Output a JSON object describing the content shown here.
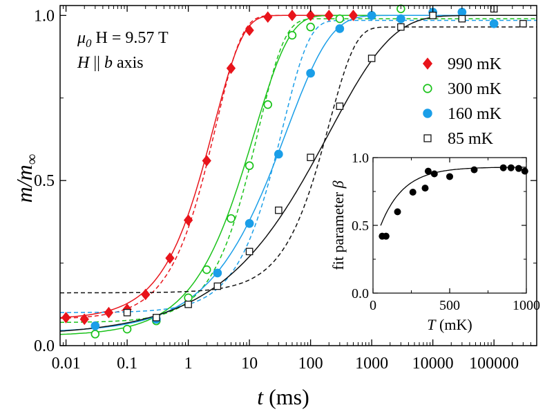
{
  "chart_data": [
    {
      "type": "scatter",
      "x_scale": "log",
      "xlabel_var": "t",
      "xlabel_unit": "(ms)",
      "ylabel_main": "m/m",
      "ylabel_sub": "∞",
      "xlim": [
        0.008,
        500000
      ],
      "ylim": [
        0.0,
        1.03
      ],
      "x_ticks": [
        0.01,
        0.1,
        1,
        10,
        100,
        1000,
        10000,
        100000
      ],
      "x_tick_labels": [
        "0.01",
        "0.1",
        "1",
        "10",
        "100",
        "1000",
        "10000",
        "100000"
      ],
      "y_ticks": [
        0.0,
        0.5,
        1.0
      ],
      "y_tick_labels": [
        "0.0",
        "0.5",
        "1.0"
      ],
      "annotations": {
        "field": {
          "mu": "μ",
          "sub": "0",
          "rest": "H = 9.57 T"
        },
        "direction": {
          "h": "H",
          "rest": " || ",
          "b": "b",
          "tail": " axis"
        }
      },
      "legend_position": "top-right",
      "series": [
        {
          "name": "990 mK",
          "marker": "diamond-filled",
          "color": "#e8141b",
          "x": [
            0.01,
            0.02,
            0.05,
            0.1,
            0.2,
            0.5,
            1,
            2,
            5,
            10,
            20,
            50,
            100,
            200,
            500
          ],
          "y": [
            0.085,
            0.08,
            0.1,
            0.11,
            0.155,
            0.265,
            0.38,
            0.56,
            0.84,
            0.955,
            0.995,
            1.0,
            1.0,
            1.0,
            1.0
          ],
          "fit_solid": {
            "y0": 0.08,
            "y1": 1.0,
            "tau": 2.6,
            "beta": 0.9
          },
          "fit_dashed": {
            "y0": 0.08,
            "y1": 1.0,
            "tau": 2.8,
            "beta": 1.0
          }
        },
        {
          "name": "300 mK",
          "marker": "circle-open",
          "color": "#19c219",
          "x": [
            0.03,
            0.1,
            0.3,
            1,
            2,
            5,
            10,
            20,
            50,
            100,
            300,
            1000,
            3000
          ],
          "y": [
            0.035,
            0.05,
            0.075,
            0.145,
            0.23,
            0.385,
            0.545,
            0.73,
            0.94,
            0.965,
            0.99,
            1.0,
            1.02
          ],
          "fit_solid": {
            "y0": 0.03,
            "y1": 1.0,
            "tau": 12,
            "beta": 0.75
          },
          "fit_dashed": {
            "y0": 0.07,
            "y1": 0.99,
            "tau": 14,
            "beta": 1.0
          }
        },
        {
          "name": "160 mK",
          "marker": "circle-filled",
          "color": "#1a9ee8",
          "x": [
            0.03,
            0.3,
            3,
            10,
            30,
            100,
            300,
            1000,
            3000,
            10000,
            30000,
            100000
          ],
          "y": [
            0.06,
            0.08,
            0.22,
            0.37,
            0.58,
            0.825,
            0.96,
            1.0,
            0.99,
            1.01,
            1.01,
            0.975
          ],
          "fit_solid": {
            "y0": 0.04,
            "y1": 1.0,
            "tau": 40,
            "beta": 0.6
          },
          "fit_dashed": {
            "y0": 0.1,
            "y1": 0.985,
            "tau": 35,
            "beta": 1.0
          }
        },
        {
          "name": "85 mK",
          "marker": "square-open",
          "color": "#111111",
          "x": [
            0.1,
            0.3,
            1,
            3,
            10,
            30,
            100,
            300,
            1000,
            3000,
            10000,
            30000,
            100000,
            300000
          ],
          "y": [
            0.1,
            0.085,
            0.125,
            0.18,
            0.285,
            0.41,
            0.57,
            0.725,
            0.87,
            0.965,
            1.0,
            0.99,
            1.02,
            0.975
          ],
          "fit_solid": {
            "y0": 0.03,
            "y1": 1.0,
            "tau": 200,
            "beta": 0.42
          },
          "fit_dashed": {
            "y0": 0.16,
            "y1": 0.965,
            "tau": 200,
            "beta": 1.0
          }
        }
      ]
    },
    {
      "type": "scatter",
      "xlabel_var": "T",
      "xlabel_unit": "(mK)",
      "ylabel_text": "fit parameter ",
      "ylabel_sym": "β",
      "xlim": [
        0,
        1000
      ],
      "ylim": [
        0.0,
        1.0
      ],
      "x_ticks": [
        0,
        500,
        1000
      ],
      "x_tick_labels": [
        "0",
        "500",
        "1000"
      ],
      "y_ticks": [
        0.0,
        0.5,
        1.0
      ],
      "y_tick_labels": [
        "0.0",
        "0.5",
        "1.0"
      ],
      "points": {
        "x": [
          60,
          85,
          160,
          260,
          340,
          360,
          400,
          500,
          660,
          850,
          900,
          950,
          990
        ],
        "y": [
          0.42,
          0.42,
          0.6,
          0.745,
          0.775,
          0.9,
          0.88,
          0.86,
          0.91,
          0.925,
          0.925,
          0.92,
          0.9
        ]
      },
      "fit_curve": {
        "a": 0.93,
        "b": 0.6,
        "c": 0.0066,
        "x_from": 50,
        "x_to": 1000
      }
    }
  ]
}
